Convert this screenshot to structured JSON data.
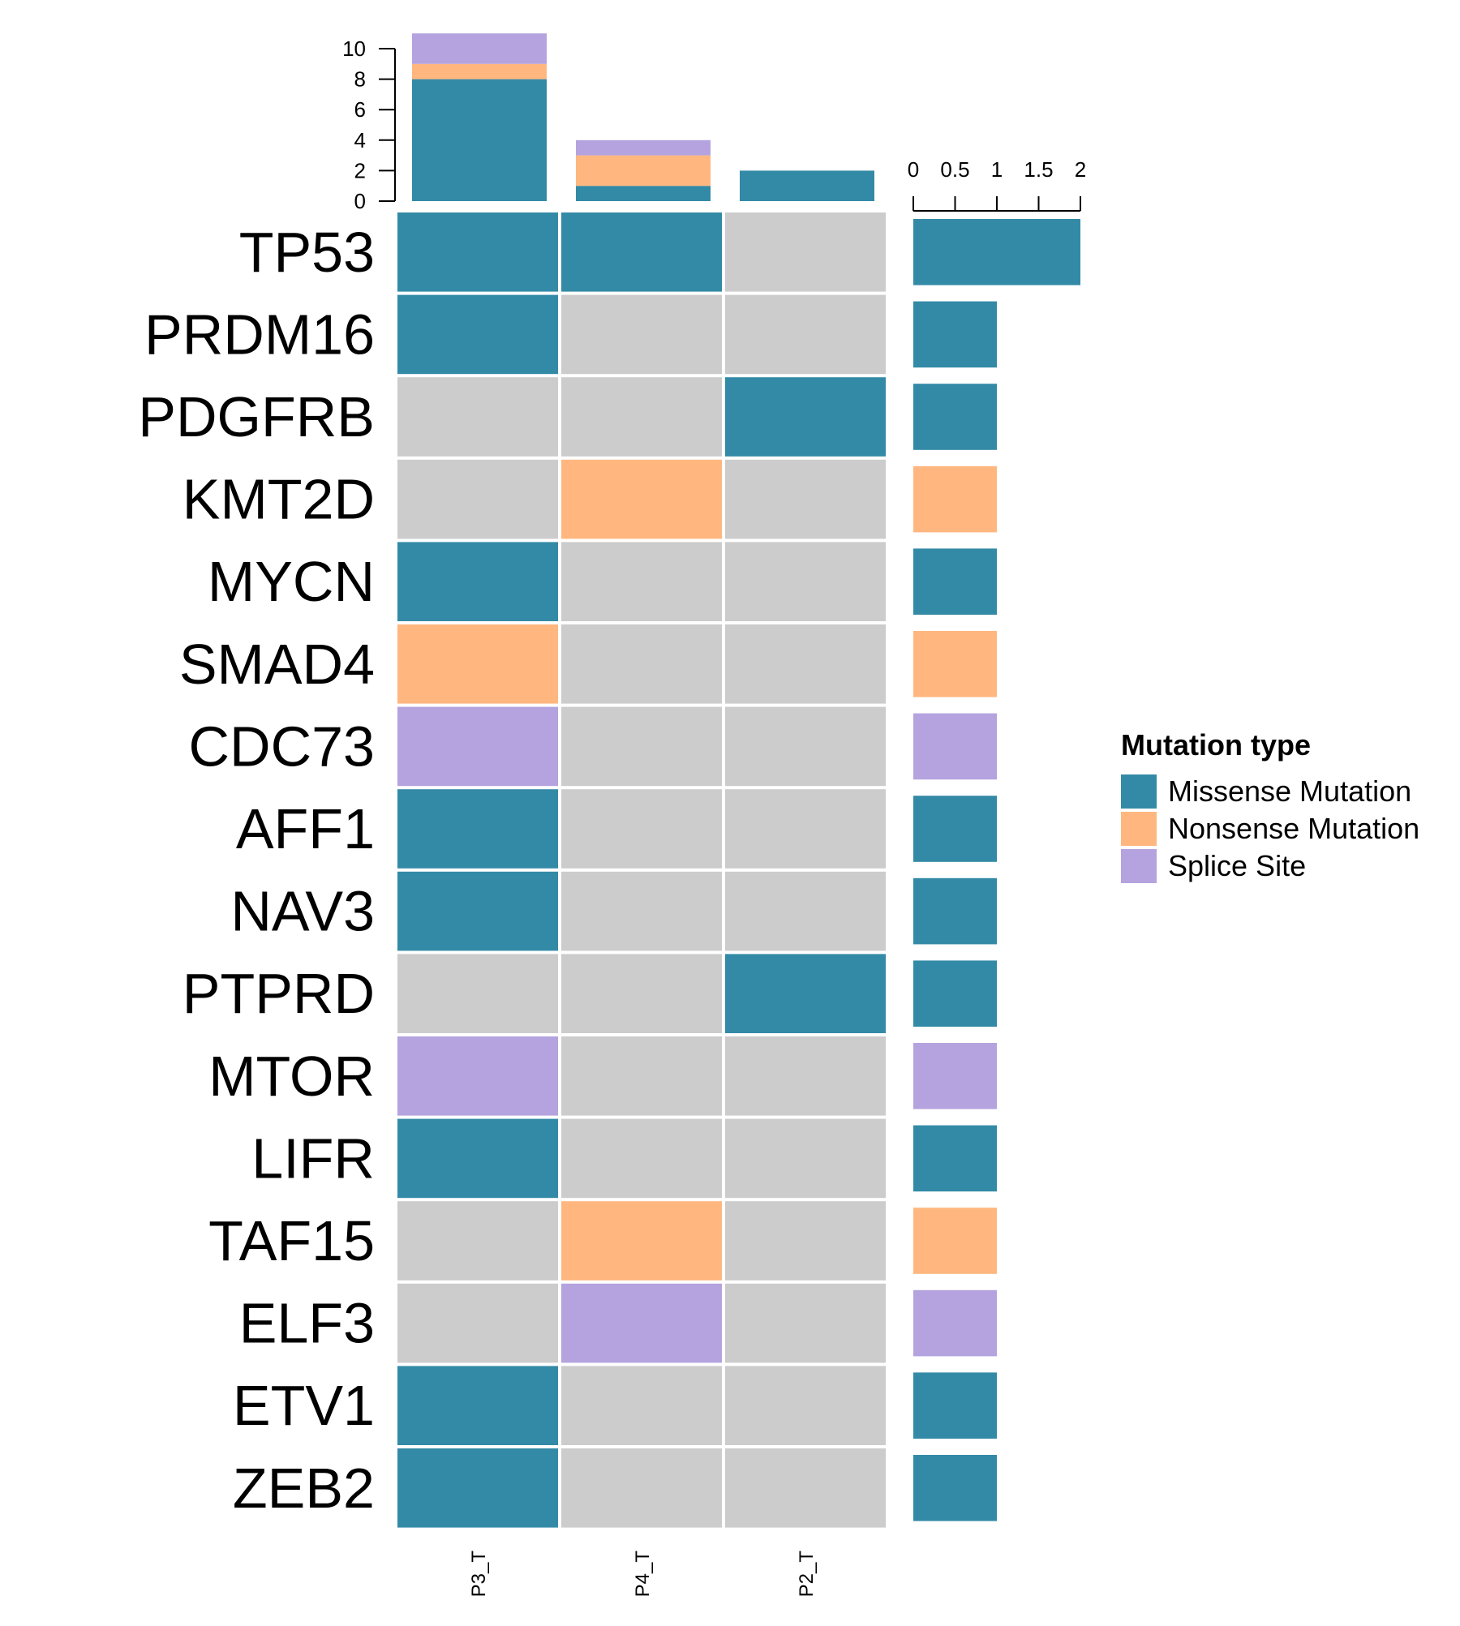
{
  "chart_data": {
    "type": "heatmap",
    "title": "",
    "samples": [
      "P3_T",
      "P4_T",
      "P2_T"
    ],
    "genes": [
      "TP53",
      "PRDM16",
      "PDGFRB",
      "KMT2D",
      "MYCN",
      "SMAD4",
      "CDC73",
      "AFF1",
      "NAV3",
      "PTPRD",
      "MTOR",
      "LIFR",
      "TAF15",
      "ELF3",
      "ETV1",
      "ZEB2"
    ],
    "matrix": [
      [
        "Missense Mutation",
        "Missense Mutation",
        null
      ],
      [
        "Missense Mutation",
        null,
        null
      ],
      [
        null,
        null,
        "Missense Mutation"
      ],
      [
        null,
        "Nonsense Mutation",
        null
      ],
      [
        "Missense Mutation",
        null,
        null
      ],
      [
        "Nonsense Mutation",
        null,
        null
      ],
      [
        "Splice Site",
        null,
        null
      ],
      [
        "Missense Mutation",
        null,
        null
      ],
      [
        "Missense Mutation",
        null,
        null
      ],
      [
        null,
        null,
        "Missense Mutation"
      ],
      [
        "Splice Site",
        null,
        null
      ],
      [
        "Missense Mutation",
        null,
        null
      ],
      [
        null,
        "Nonsense Mutation",
        null
      ],
      [
        null,
        "Splice Site",
        null
      ],
      [
        "Missense Mutation",
        null,
        null
      ],
      [
        "Missense Mutation",
        null,
        null
      ]
    ],
    "top_bars": {
      "ylim": [
        0,
        10
      ],
      "yticks": [
        "0",
        "2",
        "4",
        "6",
        "8",
        "10"
      ],
      "stacks": [
        {
          "Missense Mutation": 8,
          "Nonsense Mutation": 1,
          "Splice Site": 2
        },
        {
          "Missense Mutation": 1,
          "Nonsense Mutation": 2,
          "Splice Site": 1
        },
        {
          "Missense Mutation": 2,
          "Nonsense Mutation": 0,
          "Splice Site": 0
        }
      ]
    },
    "side_bars": {
      "xlim": [
        0,
        2
      ],
      "xticks": [
        "0",
        "0.5",
        "1",
        "1.5",
        "2"
      ],
      "stacks": [
        {
          "Missense Mutation": 2
        },
        {
          "Missense Mutation": 1
        },
        {
          "Missense Mutation": 1
        },
        {
          "Nonsense Mutation": 1
        },
        {
          "Missense Mutation": 1
        },
        {
          "Nonsense Mutation": 1
        },
        {
          "Splice Site": 1
        },
        {
          "Missense Mutation": 1
        },
        {
          "Missense Mutation": 1
        },
        {
          "Missense Mutation": 1
        },
        {
          "Splice Site": 1
        },
        {
          "Missense Mutation": 1
        },
        {
          "Nonsense Mutation": 1
        },
        {
          "Splice Site": 1
        },
        {
          "Missense Mutation": 1
        },
        {
          "Missense Mutation": 1
        }
      ]
    },
    "legend": {
      "title": "Mutation type",
      "placement": "right",
      "items": [
        "Missense Mutation",
        "Nonsense Mutation",
        "Splice Site"
      ]
    },
    "colors": {
      "Missense Mutation": "#338aa6",
      "Nonsense Mutation": "#ffb77f",
      "Splice Site": "#b4a3de",
      "empty": "#cccccc"
    },
    "stack_order": [
      "Missense Mutation",
      "Nonsense Mutation",
      "Splice Site"
    ]
  }
}
